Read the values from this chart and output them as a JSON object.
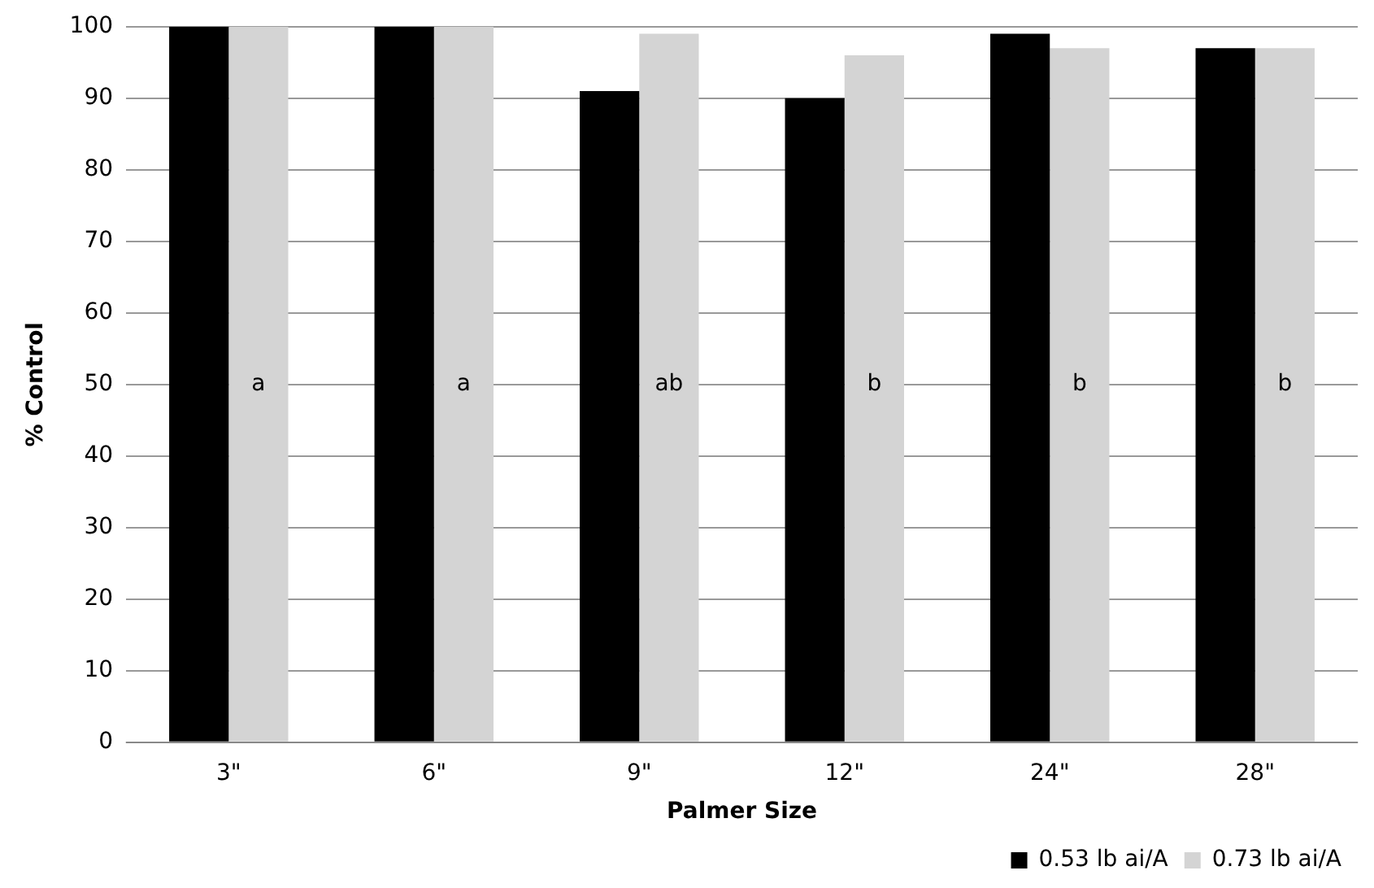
{
  "chart_data": {
    "type": "bar",
    "xlabel": "Palmer Size",
    "ylabel": "% Control",
    "categories": [
      "3\"",
      "6\"",
      "9\"",
      "12\"",
      "24\"",
      "28\""
    ],
    "series": [
      {
        "name": "0.53 lb ai/A",
        "color": "#000000",
        "values": [
          100,
          100,
          91,
          90,
          99,
          97
        ]
      },
      {
        "name": "0.73 lb ai/A",
        "color": "#d4d4d4",
        "values": [
          100,
          100,
          99,
          96,
          97,
          97
        ]
      }
    ],
    "ylim": [
      0,
      100
    ],
    "yticks": [
      0,
      10,
      20,
      30,
      40,
      50,
      60,
      70,
      80,
      90,
      100
    ],
    "grid": "y",
    "legend": "bottom right",
    "annotations": [
      {
        "text": "a",
        "x": "3\"",
        "y": 50
      },
      {
        "text": "a",
        "x": "6\"",
        "y": 50
      },
      {
        "text": "ab",
        "x": "9\"",
        "y": 50
      },
      {
        "text": "b",
        "x": "12\"",
        "y": 50
      },
      {
        "text": "b",
        "x": "24\"",
        "y": 50
      },
      {
        "text": "b",
        "x": "28\"",
        "y": 50
      }
    ]
  }
}
